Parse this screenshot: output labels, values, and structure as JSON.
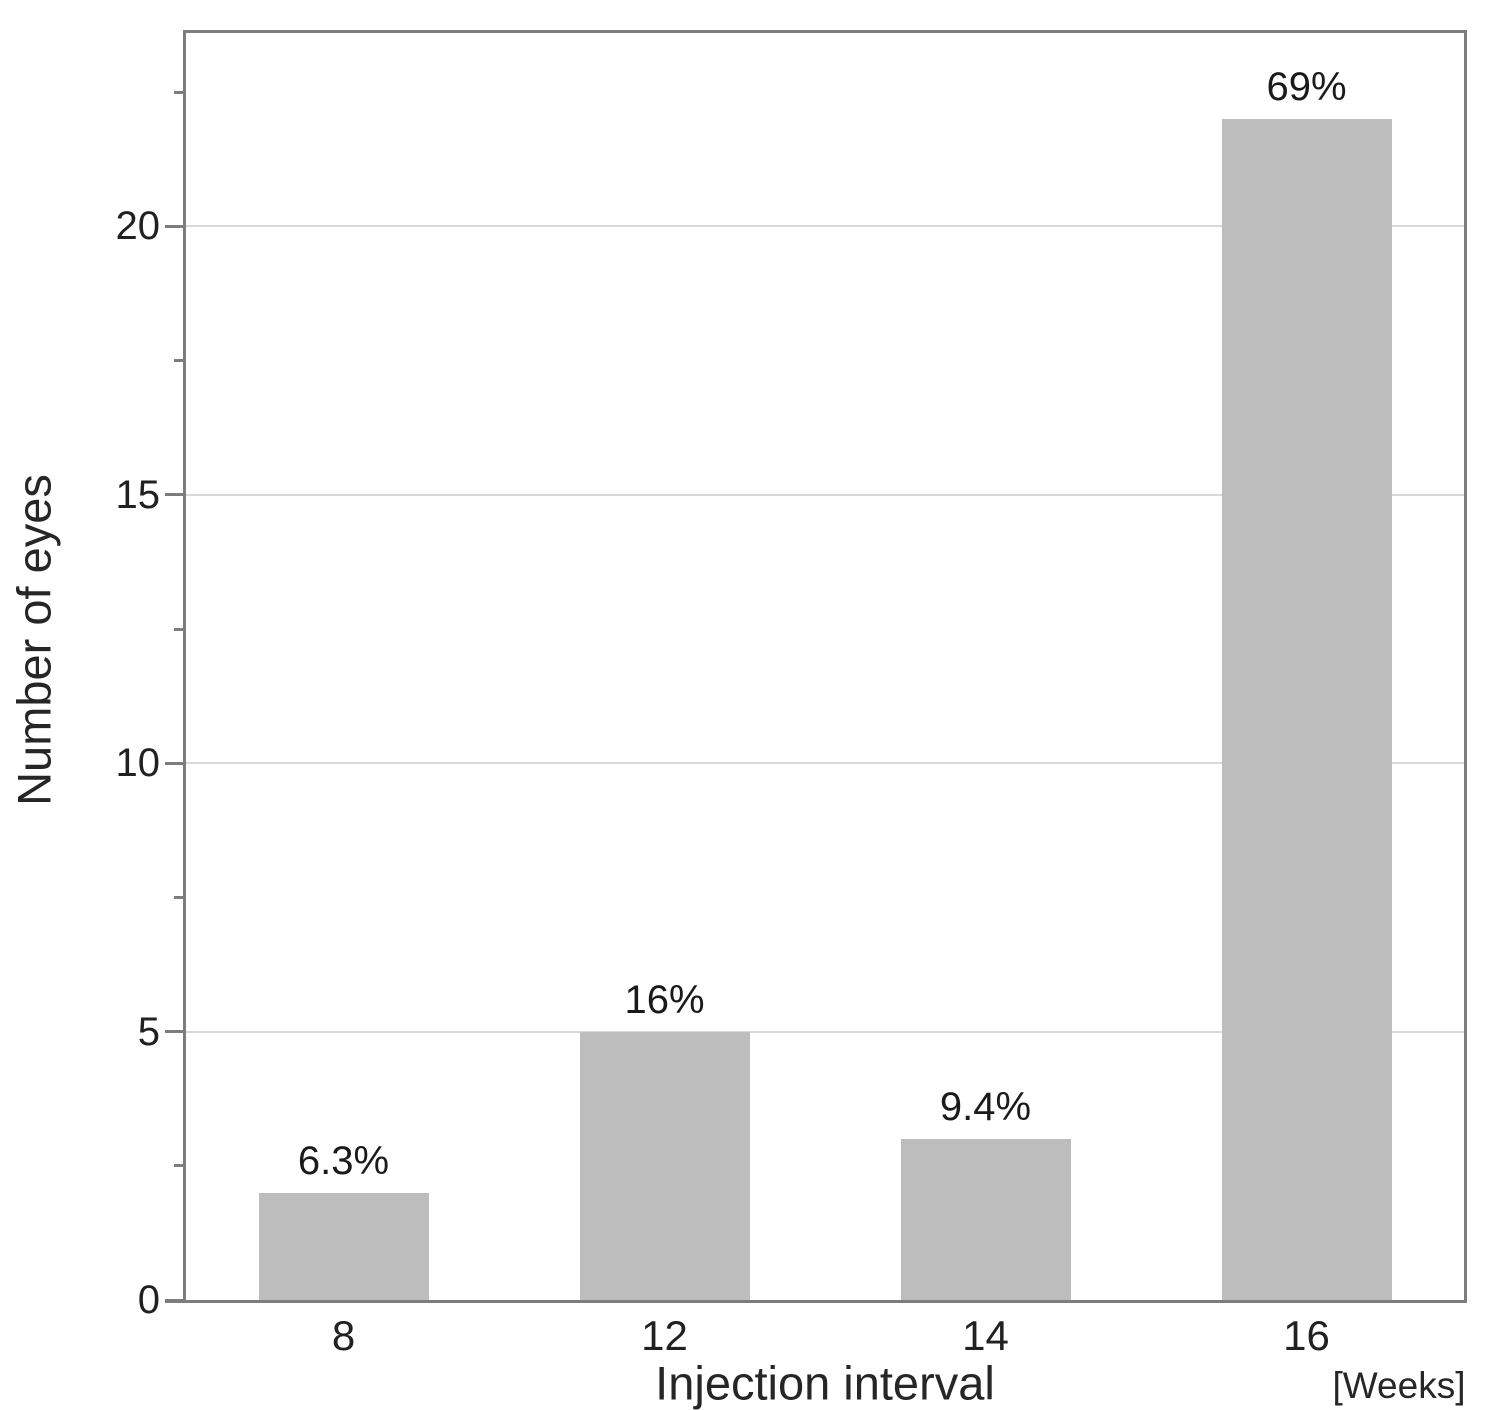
{
  "chart_data": {
    "type": "bar",
    "title": "",
    "categories": [
      "8",
      "12",
      "14",
      "16"
    ],
    "values": [
      2,
      5,
      3,
      22
    ],
    "bar_labels": [
      "6.3%",
      "16%",
      "9.4%",
      "69%"
    ],
    "xlabel": "Injection interval",
    "x_unit_label": "[Weeks]",
    "ylabel": "Number of eyes",
    "ylim": [
      0,
      23.66
    ],
    "yticks_major": [
      0,
      5,
      10,
      15,
      20
    ],
    "yticks_minor": [
      2.5,
      7.5,
      12.5,
      17.5,
      22.5
    ],
    "grid_values": [
      5,
      10,
      15,
      20
    ],
    "grid": true,
    "legend_position": "none",
    "colors": {
      "bar_fill": "#bdbdbd",
      "axis": "#7d7d7d",
      "gridline": "#d9d9d9",
      "text": "#212121"
    }
  }
}
